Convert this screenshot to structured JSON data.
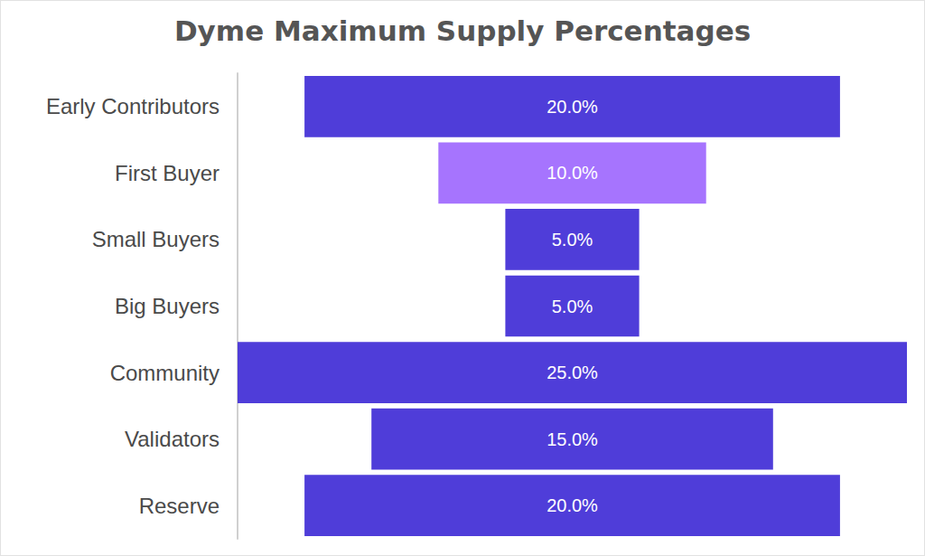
{
  "chart_data": {
    "type": "bar",
    "title": "Dyme Maximum Supply Percentages",
    "orientation": "horizontal",
    "categories": [
      "Early Contributors",
      "First Buyer",
      "Small Buyers",
      "Big Buyers",
      "Community",
      "Validators",
      "Reserve"
    ],
    "values": [
      20,
      10,
      5,
      5,
      25,
      15,
      20
    ],
    "value_labels": [
      "20.0%",
      "10.0%",
      "5.0%",
      "5.0%",
      "25.0%",
      "15.0%",
      "20.0%"
    ],
    "colors": [
      "#4f3dd9",
      "#a674fe",
      "#4f3dd9",
      "#4f3dd9",
      "#4f3dd9",
      "#4f3dd9",
      "#4f3dd9"
    ],
    "data_labels": true,
    "tick_labels": "y",
    "grid": false
  }
}
